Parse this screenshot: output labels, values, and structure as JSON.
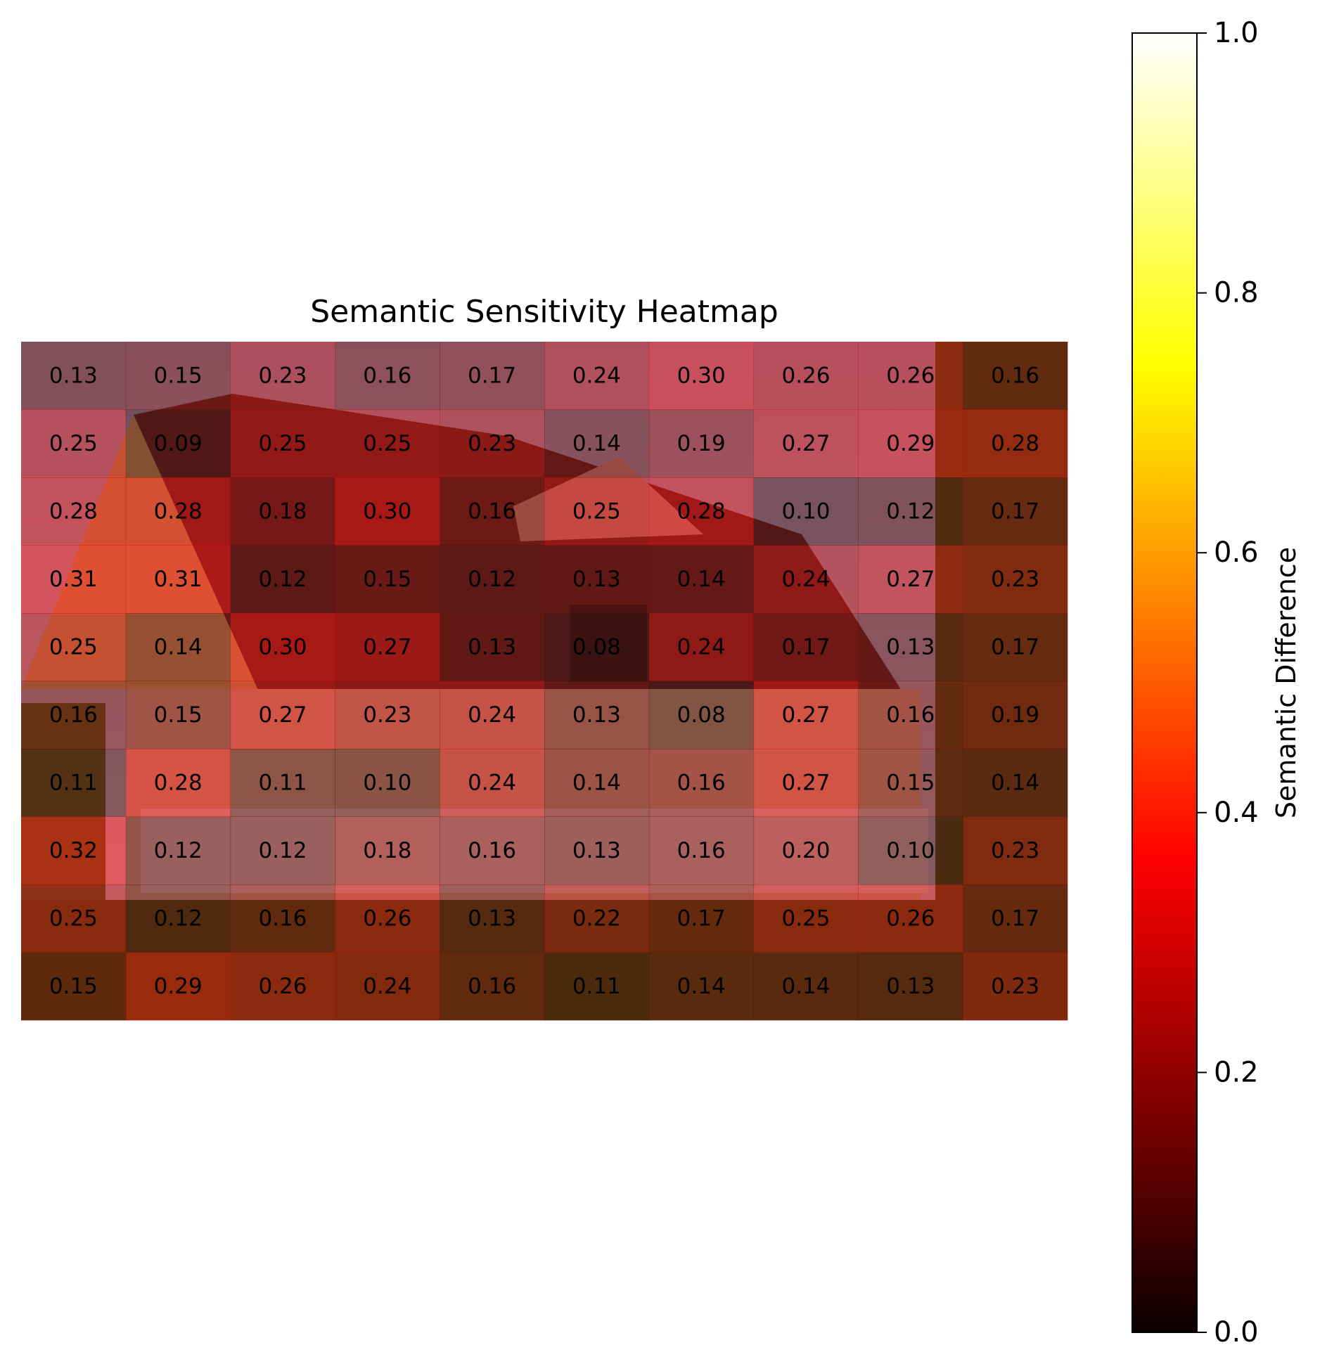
{
  "chart_data": {
    "type": "heatmap",
    "title": "Semantic Sensitivity Heatmap",
    "rows": 10,
    "cols": 10,
    "values": [
      [
        0.13,
        0.15,
        0.23,
        0.16,
        0.17,
        0.24,
        0.3,
        0.26,
        0.26,
        0.16
      ],
      [
        0.25,
        0.09,
        0.25,
        0.25,
        0.23,
        0.14,
        0.19,
        0.27,
        0.29,
        0.28
      ],
      [
        0.28,
        0.28,
        0.18,
        0.3,
        0.16,
        0.25,
        0.28,
        0.1,
        0.12,
        0.17
      ],
      [
        0.31,
        0.31,
        0.12,
        0.15,
        0.12,
        0.13,
        0.14,
        0.24,
        0.27,
        0.23
      ],
      [
        0.25,
        0.14,
        0.3,
        0.27,
        0.13,
        0.08,
        0.24,
        0.17,
        0.13,
        0.17
      ],
      [
        0.16,
        0.15,
        0.27,
        0.23,
        0.24,
        0.13,
        0.08,
        0.27,
        0.16,
        0.19
      ],
      [
        0.11,
        0.28,
        0.11,
        0.1,
        0.24,
        0.14,
        0.16,
        0.27,
        0.15,
        0.14
      ],
      [
        0.32,
        0.12,
        0.12,
        0.18,
        0.16,
        0.13,
        0.16,
        0.2,
        0.1,
        0.23
      ],
      [
        0.25,
        0.12,
        0.16,
        0.26,
        0.13,
        0.22,
        0.17,
        0.25,
        0.26,
        0.17
      ],
      [
        0.15,
        0.29,
        0.26,
        0.24,
        0.16,
        0.11,
        0.14,
        0.14,
        0.13,
        0.23
      ]
    ],
    "colormap": "hot",
    "overlay": "photograph of a house (background)",
    "colorbar": {
      "label": "Semantic Difference",
      "range": [
        0.0,
        1.0
      ],
      "ticks": [
        "0.0",
        "0.2",
        "0.4",
        "0.6",
        "0.8",
        "1.0"
      ]
    },
    "grid": false
  }
}
